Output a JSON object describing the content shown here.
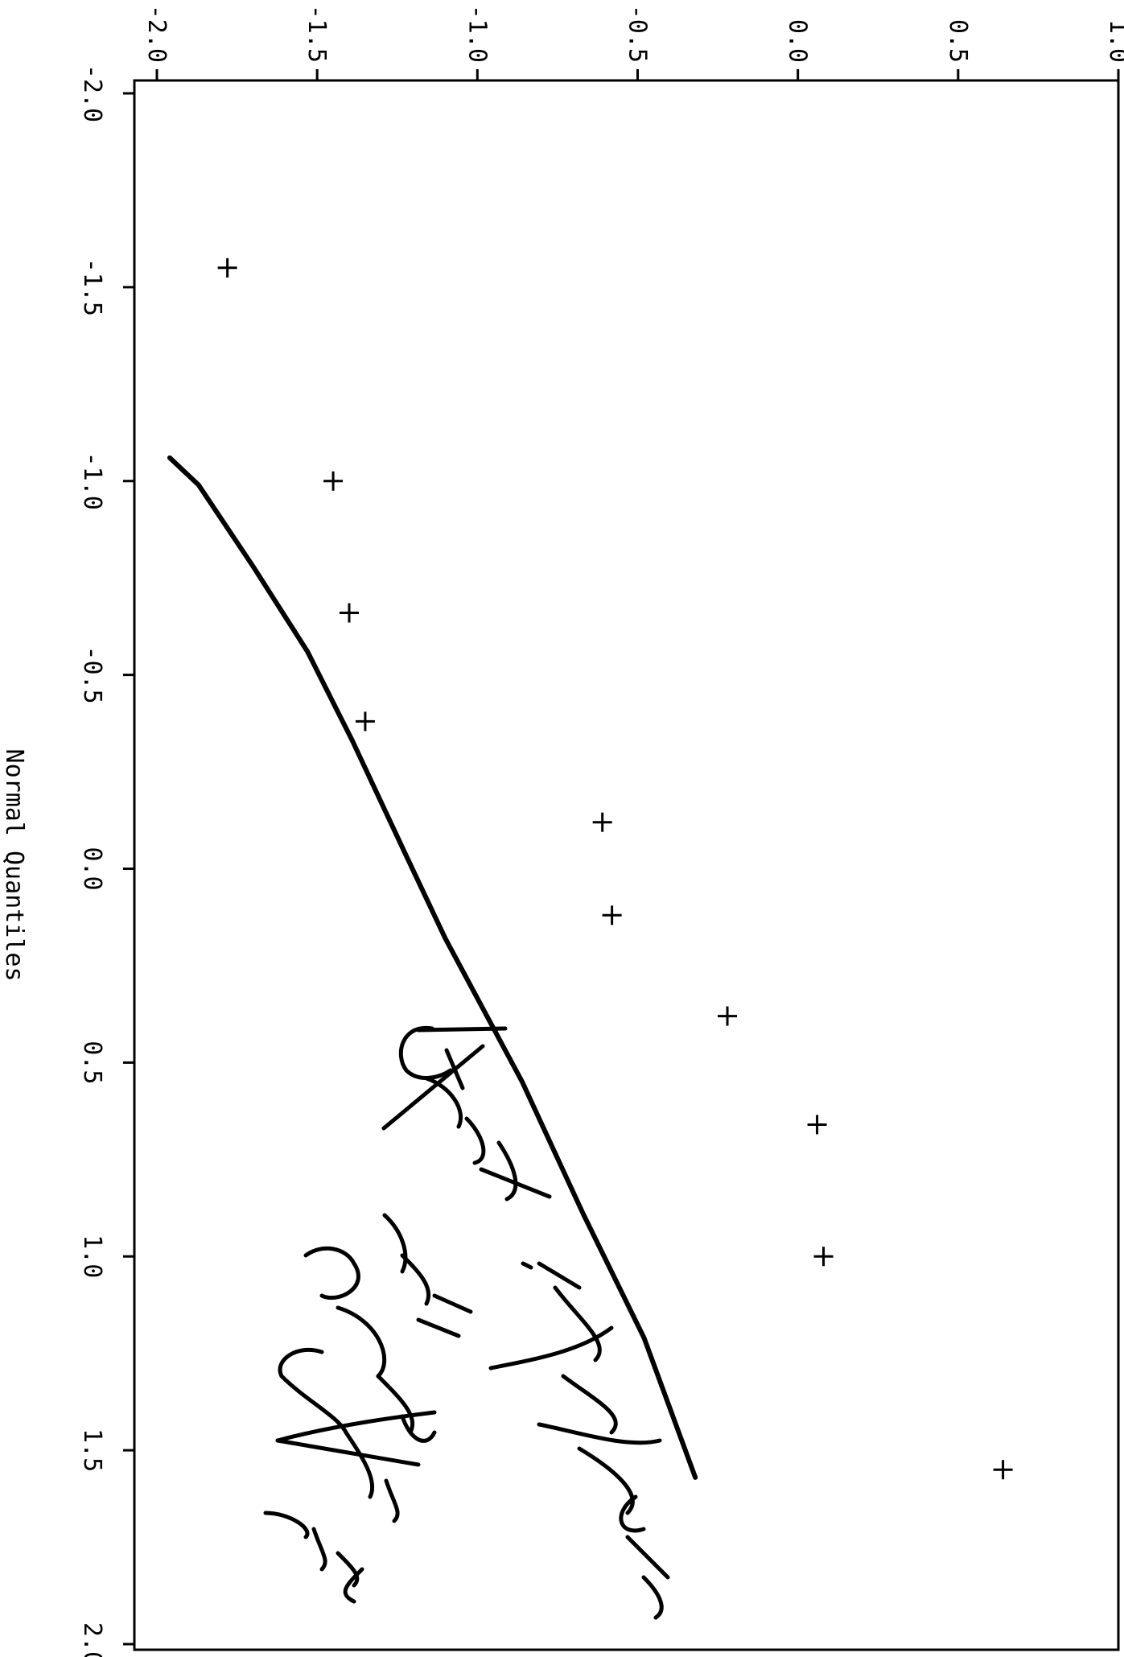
{
  "chart_data": {
    "type": "scatter",
    "title": "",
    "xlabel": "Normal Quantiles",
    "ylabel": "",
    "orientation": "rotated-90-clockwise",
    "xlim": [
      -2.0,
      2.0
    ],
    "ylim": [
      -2.0,
      1.0
    ],
    "x_ticks": [
      "-2.0",
      "-1.5",
      "-1.0",
      "-0.5",
      "0.0",
      "0.5",
      "1.0",
      "1.5",
      "2.0"
    ],
    "y_ticks": [
      "-2.0",
      "-1.5",
      "-1.0",
      "-0.5",
      "0.0",
      "0.5",
      "1.0"
    ],
    "grid": false,
    "series": [
      {
        "type": "scatter",
        "marker": "plus",
        "points": [
          {
            "x": -1.55,
            "y": -1.78
          },
          {
            "x": -1.0,
            "y": -1.45
          },
          {
            "x": -0.66,
            "y": -1.4
          },
          {
            "x": -0.38,
            "y": -1.35
          },
          {
            "x": -0.12,
            "y": -0.61
          },
          {
            "x": 0.12,
            "y": -0.58
          },
          {
            "x": 0.38,
            "y": -0.22
          },
          {
            "x": 0.66,
            "y": 0.06
          },
          {
            "x": 1.0,
            "y": 0.08
          },
          {
            "x": 1.55,
            "y": 0.64
          }
        ]
      },
      {
        "type": "line",
        "points": [
          {
            "x": -1.06,
            "y": -1.96
          },
          {
            "x": -0.99,
            "y": -1.87
          },
          {
            "x": -0.78,
            "y": -1.7
          },
          {
            "x": -0.56,
            "y": -1.53
          },
          {
            "x": -0.33,
            "y": -1.39
          },
          {
            "x": -0.03,
            "y": -1.22
          },
          {
            "x": 0.18,
            "y": -1.1
          },
          {
            "x": 0.55,
            "y": -0.86
          },
          {
            "x": 0.89,
            "y": -0.67
          },
          {
            "x": 1.21,
            "y": -0.48
          },
          {
            "x": 1.57,
            "y": -0.32
          }
        ]
      }
    ],
    "annotations": [
      {
        "text": "Expect imperfections with small sample size",
        "style": "handwritten"
      }
    ]
  }
}
